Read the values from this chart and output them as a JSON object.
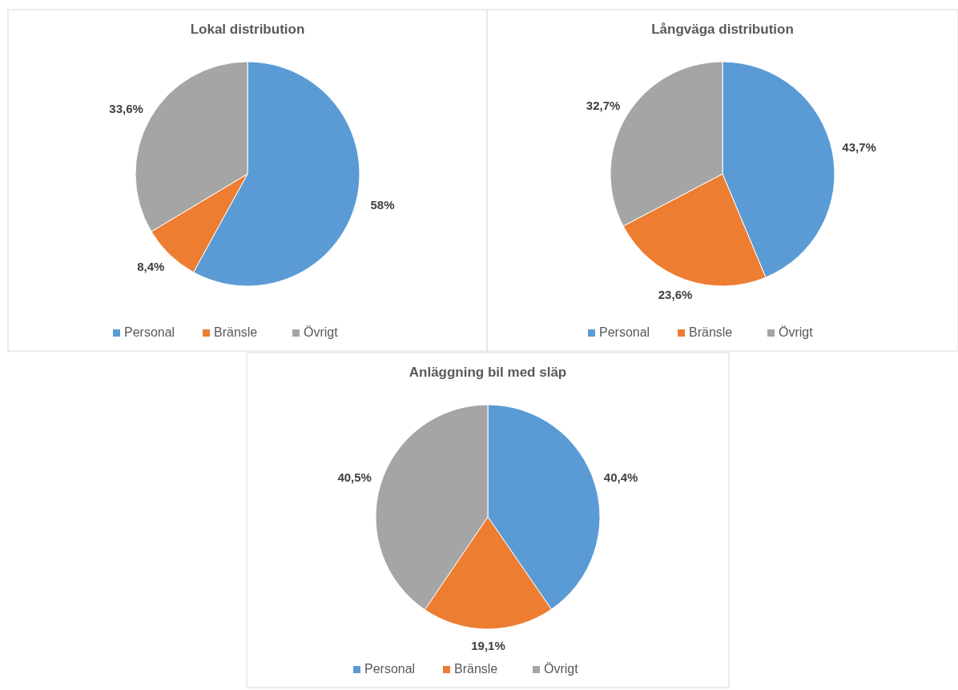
{
  "chart_data": [
    {
      "type": "pie",
      "title": "Lokal distribution",
      "categories": [
        "Personal",
        "Bränsle",
        "Övrigt"
      ],
      "values": [
        58,
        8.4,
        33.6
      ],
      "value_labels": [
        "58%",
        "8,4%",
        "33,6%"
      ],
      "colors": [
        "#5b9bd5",
        "#ed7d31",
        "#a5a5a5"
      ],
      "legend": "bottom"
    },
    {
      "type": "pie",
      "title": "Långväga distribution",
      "categories": [
        "Personal",
        "Bränsle",
        "Övrigt"
      ],
      "values": [
        43.7,
        23.6,
        32.7
      ],
      "value_labels": [
        "43,7%",
        "23,6%",
        "32,7%"
      ],
      "colors": [
        "#5b9bd5",
        "#ed7d31",
        "#a5a5a5"
      ],
      "legend": "bottom"
    },
    {
      "type": "pie",
      "title": "Anläggning bil med släp",
      "categories": [
        "Personal",
        "Bränsle",
        "Övrigt"
      ],
      "values": [
        40.4,
        19.1,
        40.5
      ],
      "value_labels": [
        "40,4%",
        "19,1%",
        "40,5%"
      ],
      "colors": [
        "#5b9bd5",
        "#ed7d31",
        "#a5a5a5"
      ],
      "legend": "bottom"
    }
  ]
}
